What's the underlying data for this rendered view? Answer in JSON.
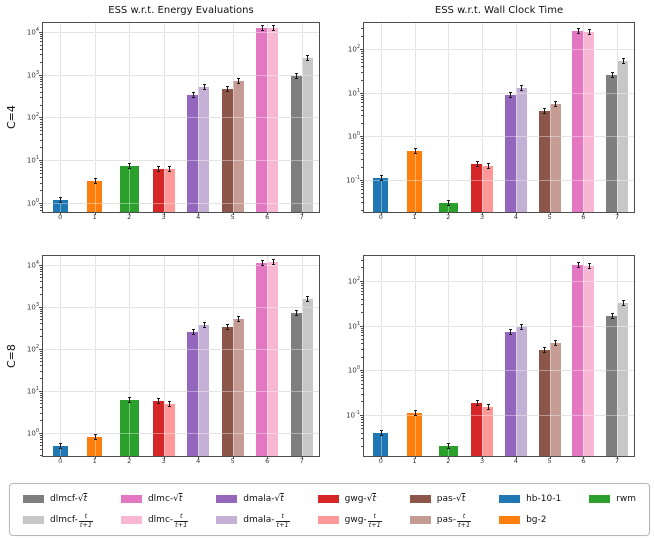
{
  "series_colors": {
    "hb-10-1": "#1f77b4",
    "bg-2": "#ff7f0e",
    "rwm": "#2ca02c",
    "gwg-sqrt": "#d62728",
    "gwg-frac": "#ff9896",
    "dmala-sqrt": "#9467bd",
    "dmala-frac": "#c5b0d5",
    "pas-sqrt": "#8c564b",
    "pas-frac": "#c49c94",
    "dlmc-sqrt": "#e377c2",
    "dlmc-frac": "#f7b6d2",
    "dlmcf-sqrt": "#7f7f7f",
    "dlmcf-frac": "#c7c7c7"
  },
  "chart_data": [
    {
      "id": "c4-energy",
      "type": "bar",
      "title": "ESS w.r.t. Energy Evaluations",
      "row_label": "C=4",
      "yscale": "log",
      "grid": true,
      "ylim": [
        0.62,
        16000
      ],
      "ytick_exponents": [
        0,
        1,
        2,
        3,
        4
      ],
      "groups": [
        {
          "x": "0",
          "bars": [
            {
              "series": "hb-10-1",
              "value": 1.2
            }
          ]
        },
        {
          "x": "1",
          "bars": [
            {
              "series": "bg-2",
              "value": 3.2
            }
          ]
        },
        {
          "x": "2",
          "bars": [
            {
              "series": "rwm",
              "value": 7.2
            }
          ]
        },
        {
          "x": "3",
          "bars": [
            {
              "series": "gwg-sqrt",
              "value": 6.4
            },
            {
              "series": "gwg-frac",
              "value": 6.2
            }
          ]
        },
        {
          "x": "4",
          "bars": [
            {
              "series": "dmala-sqrt",
              "value": 330
            },
            {
              "series": "dmala-frac",
              "value": 500
            }
          ]
        },
        {
          "x": "5",
          "bars": [
            {
              "series": "pas-sqrt",
              "value": 460
            },
            {
              "series": "pas-frac",
              "value": 700
            }
          ]
        },
        {
          "x": "6",
          "bars": [
            {
              "series": "dlmc-sqrt",
              "value": 12000
            },
            {
              "series": "dlmc-frac",
              "value": 12000
            }
          ]
        },
        {
          "x": "7",
          "bars": [
            {
              "series": "dlmcf-sqrt",
              "value": 950
            },
            {
              "series": "dlmcf-frac",
              "value": 2400
            }
          ]
        }
      ]
    },
    {
      "id": "c4-wallclock",
      "type": "bar",
      "title": "ESS w.r.t. Wall Clock Time",
      "row_label": "C=4",
      "yscale": "log",
      "grid": true,
      "ylim": [
        0.018,
        400
      ],
      "ytick_exponents": [
        -1,
        0,
        1,
        2
      ],
      "groups": [
        {
          "x": "0",
          "bars": [
            {
              "series": "hb-10-1",
              "value": 0.11
            }
          ]
        },
        {
          "x": "1",
          "bars": [
            {
              "series": "bg-2",
              "value": 0.45
            }
          ]
        },
        {
          "x": "2",
          "bars": [
            {
              "series": "rwm",
              "value": 0.029
            }
          ]
        },
        {
          "x": "3",
          "bars": [
            {
              "series": "gwg-sqrt",
              "value": 0.23
            },
            {
              "series": "gwg-frac",
              "value": 0.21
            }
          ]
        },
        {
          "x": "4",
          "bars": [
            {
              "series": "dmala-sqrt",
              "value": 8.8
            },
            {
              "series": "dmala-frac",
              "value": 13
            }
          ]
        },
        {
          "x": "5",
          "bars": [
            {
              "series": "pas-sqrt",
              "value": 3.7
            },
            {
              "series": "pas-frac",
              "value": 5.4
            }
          ]
        },
        {
          "x": "6",
          "bars": [
            {
              "series": "dlmc-sqrt",
              "value": 265
            },
            {
              "series": "dlmc-frac",
              "value": 255
            }
          ]
        },
        {
          "x": "7",
          "bars": [
            {
              "series": "dlmcf-sqrt",
              "value": 25
            },
            {
              "series": "dlmcf-frac",
              "value": 54
            }
          ]
        }
      ]
    },
    {
      "id": "c8-energy",
      "type": "bar",
      "title": "",
      "row_label": "C=8",
      "yscale": "log",
      "grid": true,
      "ylim": [
        0.28,
        16000
      ],
      "ytick_exponents": [
        0,
        1,
        2,
        3,
        4
      ],
      "groups": [
        {
          "x": "0",
          "bars": [
            {
              "series": "hb-10-1",
              "value": 0.49
            }
          ]
        },
        {
          "x": "1",
          "bars": [
            {
              "series": "bg-2",
              "value": 0.8
            }
          ]
        },
        {
          "x": "2",
          "bars": [
            {
              "series": "rwm",
              "value": 5.9
            }
          ]
        },
        {
          "x": "3",
          "bars": [
            {
              "series": "gwg-sqrt",
              "value": 5.7
            },
            {
              "series": "gwg-frac",
              "value": 4.9
            }
          ]
        },
        {
          "x": "4",
          "bars": [
            {
              "series": "dmala-sqrt",
              "value": 250
            },
            {
              "series": "dmala-frac",
              "value": 365
            }
          ]
        },
        {
          "x": "5",
          "bars": [
            {
              "series": "pas-sqrt",
              "value": 330
            },
            {
              "series": "pas-frac",
              "value": 515
            }
          ]
        },
        {
          "x": "6",
          "bars": [
            {
              "series": "dlmc-sqrt",
              "value": 11000
            },
            {
              "series": "dlmc-frac",
              "value": 11500
            }
          ]
        },
        {
          "x": "7",
          "bars": [
            {
              "series": "dlmcf-sqrt",
              "value": 700
            },
            {
              "series": "dlmcf-frac",
              "value": 1500
            }
          ]
        }
      ]
    },
    {
      "id": "c8-wallclock",
      "type": "bar",
      "title": "",
      "row_label": "C=8",
      "yscale": "log",
      "grid": true,
      "ylim": [
        0.012,
        360
      ],
      "ytick_exponents": [
        -1,
        0,
        1,
        2
      ],
      "groups": [
        {
          "x": "0",
          "bars": [
            {
              "series": "hb-10-1",
              "value": 0.04
            }
          ]
        },
        {
          "x": "1",
          "bars": [
            {
              "series": "bg-2",
              "value": 0.11
            }
          ]
        },
        {
          "x": "2",
          "bars": [
            {
              "series": "rwm",
              "value": 0.02
            }
          ]
        },
        {
          "x": "3",
          "bars": [
            {
              "series": "gwg-sqrt",
              "value": 0.18
            },
            {
              "series": "gwg-frac",
              "value": 0.15
            }
          ]
        },
        {
          "x": "4",
          "bars": [
            {
              "series": "dmala-sqrt",
              "value": 7
            },
            {
              "series": "dmala-frac",
              "value": 9.5
            }
          ]
        },
        {
          "x": "5",
          "bars": [
            {
              "series": "pas-sqrt",
              "value": 2.8
            },
            {
              "series": "pas-frac",
              "value": 4.1
            }
          ]
        },
        {
          "x": "6",
          "bars": [
            {
              "series": "dlmc-sqrt",
              "value": 230
            },
            {
              "series": "dlmc-frac",
              "value": 220
            }
          ]
        },
        {
          "x": "7",
          "bars": [
            {
              "series": "dlmcf-sqrt",
              "value": 16
            },
            {
              "series": "dlmcf-frac",
              "value": 32
            }
          ]
        }
      ]
    }
  ],
  "legend": {
    "position": "bottom",
    "math": {
      "sqrt_prefix": "√",
      "sqrt_arg": "t",
      "frac_num": "t",
      "frac_den": "t+1"
    },
    "items": [
      {
        "series": "dlmcf-sqrt",
        "text": "dlmcf-",
        "math": "sqrt"
      },
      {
        "series": "dlmcf-frac",
        "text": "dlmcf-",
        "math": "frac"
      },
      {
        "series": "dlmc-sqrt",
        "text": "dlmc-",
        "math": "sqrt"
      },
      {
        "series": "dlmc-frac",
        "text": "dlmc-",
        "math": "frac"
      },
      {
        "series": "dmala-sqrt",
        "text": "dmala-",
        "math": "sqrt"
      },
      {
        "series": "dmala-frac",
        "text": "dmala-",
        "math": "frac"
      },
      {
        "series": "gwg-sqrt",
        "text": "gwg-",
        "math": "sqrt"
      },
      {
        "series": "gwg-frac",
        "text": "gwg-",
        "math": "frac"
      },
      {
        "series": "pas-sqrt",
        "text": "pas-",
        "math": "sqrt"
      },
      {
        "series": "pas-frac",
        "text": "pas-",
        "math": "frac"
      },
      {
        "series": "hb-10-1",
        "text": "hb-10-1",
        "math": "none"
      },
      {
        "series": "bg-2",
        "text": "bg-2",
        "math": "none"
      },
      {
        "series": "rwm",
        "text": "rwm",
        "math": "none"
      }
    ]
  }
}
